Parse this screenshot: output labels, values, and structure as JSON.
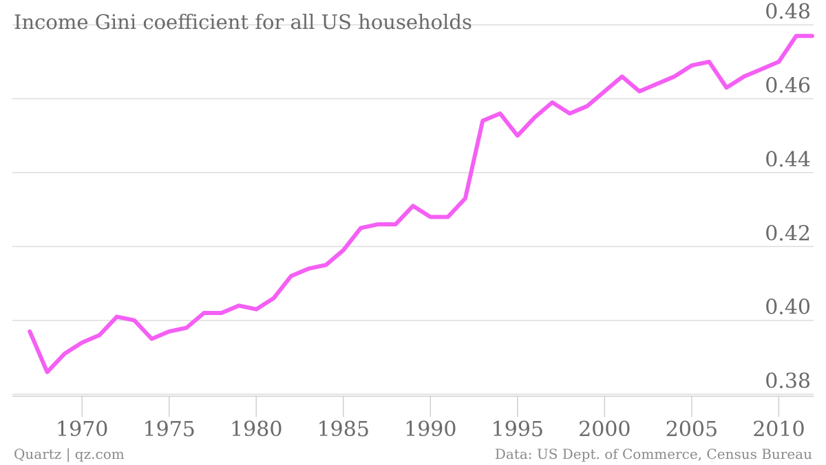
{
  "chart_data": {
    "type": "line",
    "title": "Income Gini coefficient for all US households",
    "xlim": [
      1966,
      2012
    ],
    "ylim": [
      0.375,
      0.483
    ],
    "yticks": [
      0.38,
      0.4,
      0.42,
      0.44,
      0.46,
      0.48
    ],
    "ytick_labels": [
      "0.38",
      "0.40",
      "0.42",
      "0.44",
      "0.46",
      "0.48"
    ],
    "xticks": [
      1970,
      1975,
      1980,
      1985,
      1990,
      1995,
      2000,
      2005,
      2010
    ],
    "xtick_labels": [
      "1970",
      "1975",
      "1980",
      "1985",
      "1990",
      "1995",
      "2000",
      "2005",
      "2010"
    ],
    "grid": true,
    "line_color": "#f45ff4",
    "series": [
      {
        "x": [
          1967,
          1968,
          1969,
          1970,
          1971,
          1972,
          1973,
          1974,
          1975,
          1976,
          1977,
          1978,
          1979,
          1980,
          1981,
          1982,
          1983,
          1984,
          1985,
          1986,
          1987,
          1988,
          1989,
          1990,
          1991,
          1992,
          1993,
          1994,
          1995,
          1996,
          1997,
          1998,
          1999,
          2000,
          2001,
          2002,
          2003,
          2004,
          2005,
          2006,
          2007,
          2008,
          2009,
          2010,
          2011
        ],
        "values": [
          0.397,
          0.386,
          0.391,
          0.394,
          0.396,
          0.401,
          0.4,
          0.395,
          0.397,
          0.398,
          0.402,
          0.402,
          0.404,
          0.403,
          0.406,
          0.412,
          0.414,
          0.415,
          0.419,
          0.425,
          0.426,
          0.426,
          0.431,
          0.428,
          0.428,
          0.433,
          0.454,
          0.456,
          0.45,
          0.455,
          0.459,
          0.456,
          0.458,
          0.462,
          0.466,
          0.462,
          0.464,
          0.466,
          0.469,
          0.47,
          0.463,
          0.466,
          0.468,
          0.47,
          0.477
        ]
      }
    ]
  },
  "footer": {
    "source_left": "Quartz | qz.com",
    "source_right": "Data: US Dept. of Commerce, Census Bureau"
  }
}
